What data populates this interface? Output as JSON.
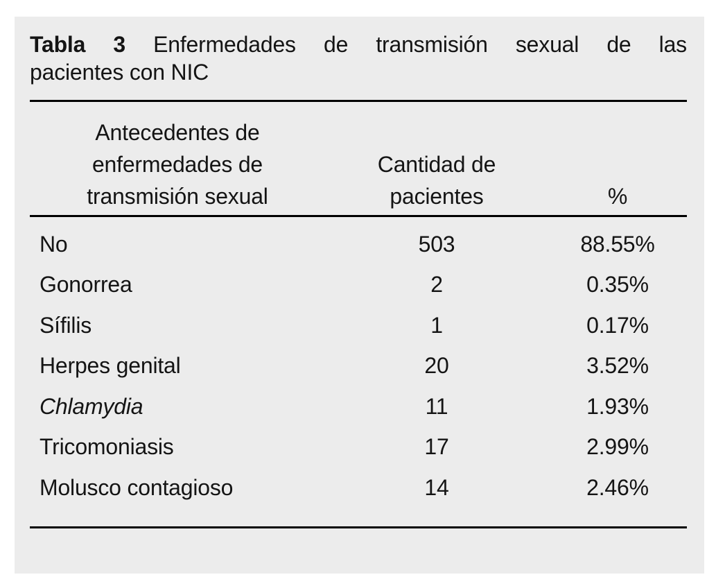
{
  "caption": {
    "label": "Tabla 3",
    "line1_rest": "Enfermedades de transmisión sexual de las",
    "line2": "pacientes con NIC"
  },
  "header": {
    "col1_lines": [
      "Antecedentes de",
      "enfermedades de",
      "transmisión sexual"
    ],
    "col2_lines": [
      "Cantidad de",
      "pacientes"
    ],
    "col3": "%"
  },
  "rows": [
    {
      "label": "No",
      "count": "503",
      "pct": "88.55%"
    },
    {
      "label": "Gonorrea",
      "count": "2",
      "pct": "0.35%"
    },
    {
      "label": "Sífilis",
      "count": "1",
      "pct": "0.17%"
    },
    {
      "label": "Herpes genital",
      "count": "20",
      "pct": "3.52%"
    },
    {
      "label": "Chlamydia",
      "count": "11",
      "pct": "1.93%"
    },
    {
      "label": "Tricomoniasis",
      "count": "17",
      "pct": "2.99%"
    },
    {
      "label": "Molusco contagioso",
      "count": "14",
      "pct": "2.46%"
    }
  ],
  "chart_data": {
    "type": "table",
    "title": "Tabla 3 Enfermedades de transmisión sexual de las pacientes con NIC",
    "columns": [
      "Antecedentes de enfermedades de transmisión sexual",
      "Cantidad de pacientes",
      "%"
    ],
    "categories": [
      "No",
      "Gonorrea",
      "Sífilis",
      "Herpes genital",
      "Chlamydia",
      "Tricomoniasis",
      "Molusco contagioso"
    ],
    "series": [
      {
        "name": "Cantidad de pacientes",
        "values": [
          503,
          2,
          1,
          20,
          11,
          17,
          14
        ]
      },
      {
        "name": "%",
        "values": [
          88.55,
          0.35,
          0.17,
          3.52,
          1.93,
          2.99,
          2.46
        ]
      }
    ]
  },
  "colors": {
    "panel_bg": "#ececec",
    "text": "#141414",
    "rule": "#000000"
  }
}
